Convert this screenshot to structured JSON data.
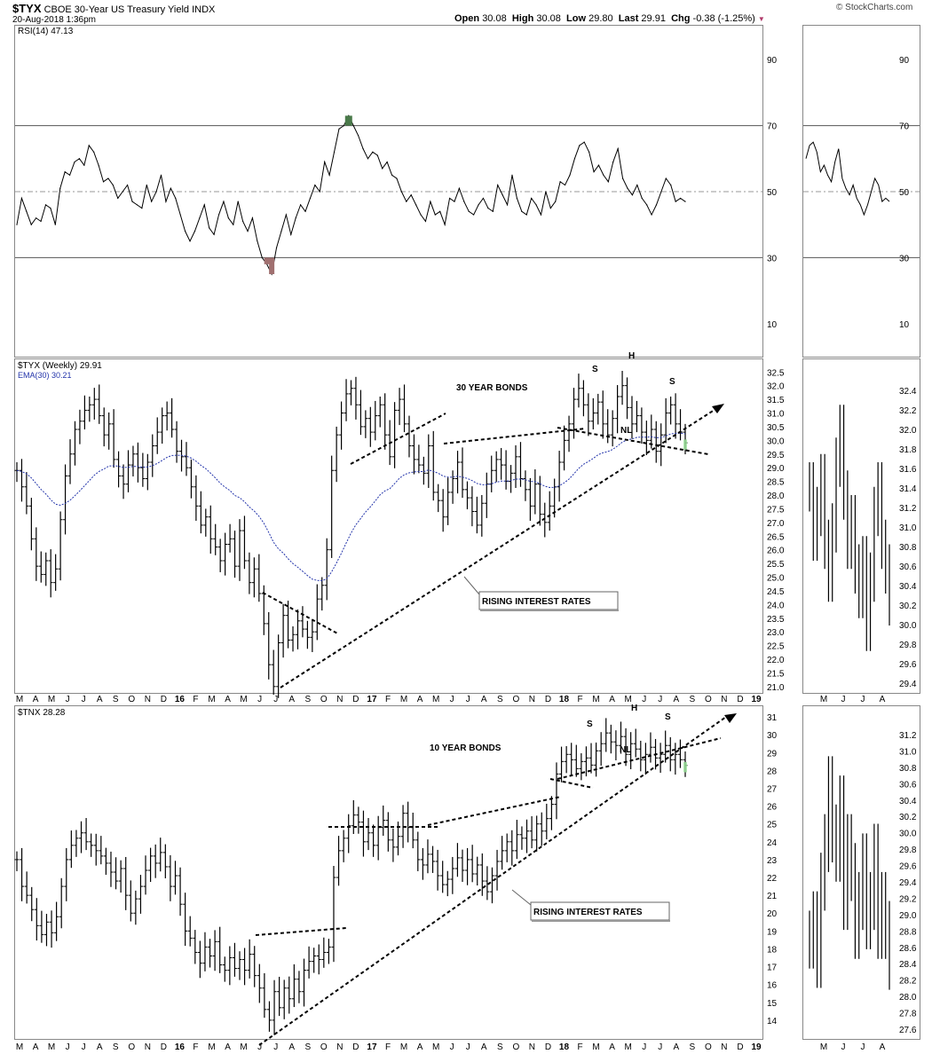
{
  "header": {
    "symbol": "$TYX",
    "description": "CBOE 30-Year US Treasury Yield",
    "exchange": "INDX",
    "datetime": "20-Aug-2018 1:36pm",
    "open_label": "Open",
    "open": "30.08",
    "high_label": "High",
    "high": "30.08",
    "low_label": "Low",
    "low": "29.80",
    "last_label": "Last",
    "last": "29.91",
    "chg_label": "Chg",
    "chg": "-0.38 (-1.25%)",
    "down_glyph": "▼",
    "logo": "© StockCharts.com"
  },
  "rsi_panel": {
    "legend": "RSI(14) 47.13",
    "ticks": [
      "90",
      "70",
      "50",
      "30",
      "10"
    ]
  },
  "tyx_panel": {
    "legend": "$TYX (Weekly) 29.91",
    "ema_legend": "EMA(30) 30.21",
    "ticks": [
      "32.5",
      "32.0",
      "31.5",
      "31.0",
      "30.5",
      "30.0",
      "29.5",
      "29.0",
      "28.5",
      "28.0",
      "27.5",
      "27.0",
      "26.5",
      "26.0",
      "25.5",
      "25.0",
      "24.5",
      "24.0",
      "23.5",
      "23.0",
      "22.5",
      "22.0",
      "21.5",
      "21.0"
    ],
    "right_ticks": [
      "32.4",
      "32.2",
      "32.0",
      "31.8",
      "31.6",
      "31.4",
      "31.2",
      "31.0",
      "30.8",
      "30.6",
      "30.4",
      "30.2",
      "30.0",
      "29.8",
      "29.6",
      "29.4"
    ],
    "title": "30 YEAR BONDS",
    "annotation": "RISING INTEREST RATES",
    "pattern_labels": [
      "S",
      "H",
      "S",
      "NL"
    ]
  },
  "tnx_panel": {
    "legend": "$TNX 28.28",
    "ticks": [
      "31",
      "30",
      "29",
      "28",
      "27",
      "26",
      "25",
      "24",
      "23",
      "22",
      "21",
      "20",
      "19",
      "18",
      "17",
      "16",
      "15",
      "14"
    ],
    "right_ticks": [
      "31.2",
      "31.0",
      "30.8",
      "30.6",
      "30.4",
      "30.2",
      "30.0",
      "29.8",
      "29.6",
      "29.4",
      "29.2",
      "29.0",
      "28.8",
      "28.6",
      "28.4",
      "28.2",
      "28.0",
      "27.8",
      "27.6"
    ],
    "title": "10 YEAR BONDS",
    "annotation": "RISING INTEREST RATES",
    "pattern_labels": [
      "S",
      "H",
      "S",
      "NL"
    ]
  },
  "x_axis_labels": [
    "M",
    "A",
    "M",
    "J",
    "J",
    "A",
    "S",
    "O",
    "N",
    "D",
    "16",
    "F",
    "M",
    "A",
    "M",
    "J",
    "J",
    "A",
    "S",
    "O",
    "N",
    "D",
    "17",
    "F",
    "M",
    "A",
    "M",
    "J",
    "J",
    "A",
    "S",
    "O",
    "N",
    "D",
    "18",
    "F",
    "M",
    "A",
    "M",
    "J",
    "J",
    "A",
    "S",
    "O",
    "N",
    "D",
    "19"
  ],
  "x_axis_right_labels": [
    "M",
    "J",
    "J",
    "A"
  ],
  "chart_data": [
    {
      "type": "line",
      "name": "RSI(14)",
      "ylim": [
        0,
        100
      ],
      "reference_lines": [
        70,
        50,
        30
      ],
      "y": [
        40,
        48,
        44,
        40,
        42,
        41,
        46,
        45,
        40,
        51,
        56,
        55,
        59,
        60,
        58,
        64,
        62,
        58,
        53,
        54,
        52,
        48,
        50,
        52,
        47,
        46,
        45,
        52,
        47,
        50,
        55,
        47,
        51,
        48,
        43,
        38,
        35,
        38,
        42,
        46,
        39,
        37,
        43,
        47,
        42,
        40,
        47,
        41,
        38,
        42,
        35,
        30,
        28,
        25,
        33,
        38,
        43,
        37,
        42,
        46,
        44,
        48,
        52,
        50,
        59,
        55,
        62,
        69,
        70,
        73,
        70,
        67,
        63,
        60,
        62,
        61,
        57,
        59,
        55,
        54,
        50,
        47,
        49,
        46,
        43,
        41,
        47,
        43,
        44,
        40,
        48,
        47,
        51,
        47,
        44,
        43,
        46,
        48,
        45,
        44,
        52,
        49,
        46,
        55,
        48,
        44,
        43,
        48,
        46,
        43,
        50,
        45,
        47,
        53,
        52,
        55,
        60,
        64,
        65,
        62,
        56,
        58,
        55,
        53,
        59,
        63,
        54,
        51,
        49,
        52,
        48,
        46,
        43,
        46,
        50,
        54,
        52,
        47,
        48,
        47
      ]
    },
    {
      "type": "bar",
      "name": "$TYX (Weekly)",
      "ylim": [
        20.8,
        32.8
      ],
      "last": 29.91,
      "ema30_last": 30.21,
      "close": [
        28.9,
        28.3,
        27.6,
        26.4,
        25.4,
        25.1,
        25.6,
        24.8,
        25.3,
        27.1,
        28.7,
        29.5,
        30.4,
        30.7,
        31.1,
        31.3,
        31.5,
        30.9,
        30.2,
        30.6,
        29.3,
        28.7,
        28.4,
        29.1,
        29.5,
        29.0,
        28.6,
        29.2,
        29.8,
        30.3,
        30.9,
        31.0,
        30.4,
        29.6,
        29.4,
        29.0,
        28.3,
        27.6,
        26.9,
        27.2,
        26.4,
        26.1,
        25.6,
        26.2,
        26.4,
        25.4,
        26.7,
        25.6,
        24.8,
        25.3,
        24.4,
        23.3,
        21.8,
        21.0,
        22.6,
        23.6,
        22.7,
        22.9,
        23.4,
        23.1,
        22.8,
        23.0,
        24.2,
        24.7,
        26.0,
        28.9,
        30.2,
        31.0,
        31.7,
        31.9,
        31.3,
        30.5,
        30.8,
        30.3,
        30.9,
        31.3,
        30.2,
        29.4,
        31.1,
        31.5,
        30.6,
        29.8,
        29.3,
        29.1,
        28.8,
        29.8,
        28.1,
        27.8,
        27.2,
        28.1,
        28.6,
        29.2,
        28.2,
        27.9,
        27.4,
        26.9,
        27.7,
        28.4,
        28.9,
        29.3,
        29.1,
        28.5,
        28.8,
        29.4,
        28.6,
        28.2,
        27.6,
        28.4,
        27.3,
        27.0,
        27.6,
        28.3,
        29.2,
        30.0,
        30.6,
        31.5,
        31.9,
        31.3,
        30.7,
        31.0,
        31.4,
        30.6,
        30.2,
        30.8,
        31.6,
        32.0,
        31.2,
        30.6,
        30.9,
        30.3,
        30.0,
        30.4,
        29.6,
        30.2,
        31.0,
        31.3,
        30.6,
        30.3,
        29.91
      ]
    },
    {
      "type": "bar",
      "name": "$TNX",
      "ylim": [
        13.0,
        31.5
      ],
      "last": 28.28,
      "close": [
        23.0,
        21.5,
        21.0,
        20.2,
        19.3,
        18.8,
        19.5,
        18.9,
        19.8,
        21.5,
        23.0,
        23.8,
        24.2,
        24.5,
        24.0,
        23.8,
        23.5,
        23.2,
        22.8,
        22.3,
        21.8,
        22.5,
        21.0,
        20.0,
        20.8,
        21.5,
        22.4,
        23.2,
        22.8,
        23.4,
        22.6,
        21.5,
        22.1,
        20.5,
        19.0,
        18.6,
        17.8,
        17.2,
        18.1,
        17.6,
        18.4,
        17.1,
        16.8,
        17.5,
        16.9,
        17.4,
        16.8,
        17.7,
        16.5,
        15.8,
        14.6,
        14.0,
        15.6,
        14.7,
        15.8,
        15.2,
        16.3,
        15.6,
        16.8,
        17.3,
        17.6,
        17.4,
        17.8,
        18.1,
        22.0,
        23.5,
        24.2,
        24.9,
        25.5,
        25.1,
        24.0,
        24.5,
        23.8,
        24.8,
        25.2,
        24.1,
        23.7,
        24.3,
        25.6,
        24.8,
        24.1,
        23.0,
        22.7,
        23.3,
        22.9,
        22.1,
        21.6,
        21.9,
        22.5,
        23.1,
        22.4,
        23.0,
        22.2,
        22.7,
        21.8,
        21.2,
        22.1,
        22.9,
        23.5,
        24.0,
        23.5,
        24.4,
        24.2,
        24.6,
        24.1,
        25.0,
        24.6,
        25.3,
        26.1,
        27.8,
        28.5,
        28.9,
        28.6,
        28.1,
        28.5,
        28.7,
        28.3,
        29.1,
        29.5,
        30.1,
        29.6,
        29.4,
        29.9,
        28.9,
        29.5,
        29.2,
        28.6,
        28.9,
        29.3,
        28.7,
        28.9,
        29.4,
        28.6,
        28.9,
        28.6,
        28.28
      ]
    }
  ]
}
